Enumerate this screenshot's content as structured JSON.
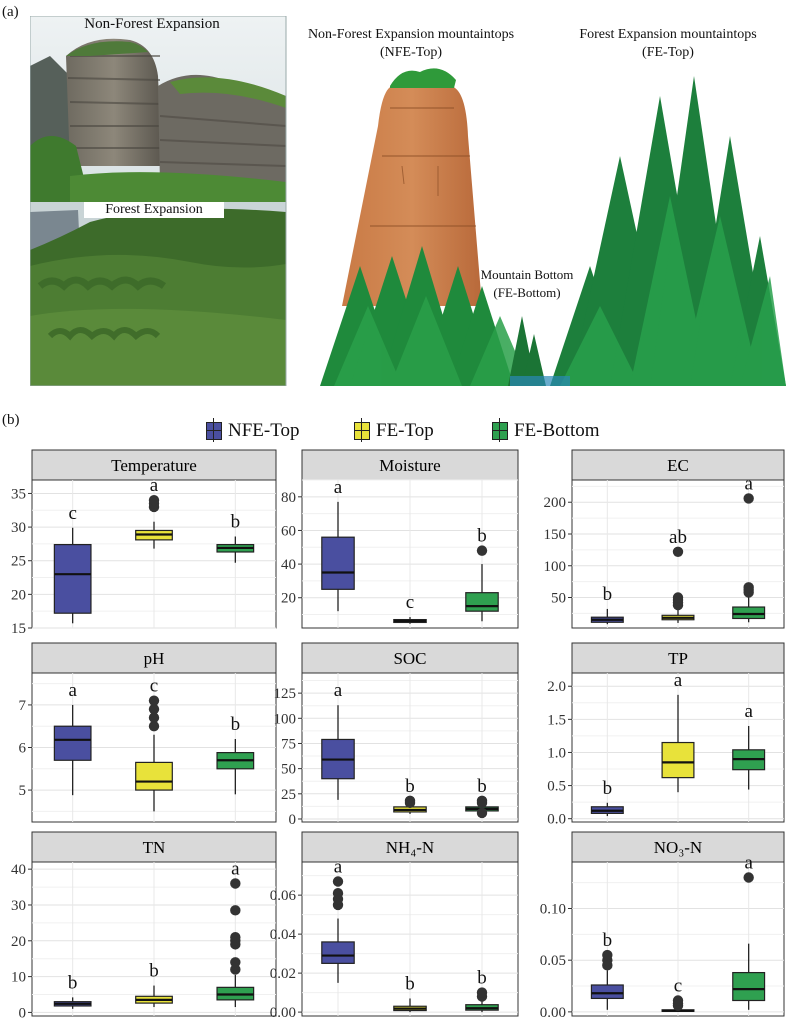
{
  "panel_a": {
    "label": "(a)",
    "photo_top_caption": "Non-Forest Expansion",
    "photo_bottom_caption": "Forest Expansion",
    "nfe_top_line1": "Non-Forest Expansion mountaintops",
    "nfe_top_line2": "(NFE-Top)",
    "fe_top_line1": "Forest Expansion mountaintops",
    "fe_top_line2": "(FE-Top)",
    "fe_bottom_line1": "Mountain Bottom",
    "fe_bottom_line2": "(FE-Bottom)"
  },
  "panel_b": {
    "label": "(b)",
    "legend": [
      {
        "name": "NFE-Top",
        "color": "#4a4fa0"
      },
      {
        "name": "FE-Top",
        "color": "#e8e23a"
      },
      {
        "name": "FE-Bottom",
        "color": "#2fa050"
      }
    ]
  },
  "chart_data": [
    {
      "type": "box",
      "title": "Temperature",
      "categories": [
        "NFE-Top",
        "FE-Top",
        "FE-Bottom"
      ],
      "ylim": [
        15,
        37
      ],
      "yticks": [
        15,
        20,
        25,
        30,
        35
      ],
      "ytick_labels": [
        "15",
        "20",
        "25",
        "30",
        "35"
      ],
      "boxes": [
        {
          "min": 15.7,
          "q1": 17.2,
          "median": 23.0,
          "q3": 27.4,
          "max": 29.9,
          "outliers": [],
          "letter": "c"
        },
        {
          "min": 26.8,
          "q1": 28.1,
          "median": 28.9,
          "q3": 29.5,
          "max": 30.8,
          "outliers": [
            33.0,
            33.5,
            34.0
          ],
          "letter": "a"
        },
        {
          "min": 24.7,
          "q1": 26.3,
          "median": 26.9,
          "q3": 27.4,
          "max": 28.6,
          "outliers": [],
          "letter": "b"
        }
      ]
    },
    {
      "type": "box",
      "title": "Moisture",
      "categories": [
        "NFE-Top",
        "FE-Top",
        "FE-Bottom"
      ],
      "ylim": [
        2,
        90
      ],
      "yticks": [
        20,
        40,
        60,
        80
      ],
      "ytick_labels": [
        "20",
        "40",
        "60",
        "80"
      ],
      "boxes": [
        {
          "min": 12,
          "q1": 25,
          "median": 35,
          "q3": 56,
          "max": 77,
          "outliers": [],
          "letter": "a"
        },
        {
          "min": 4.5,
          "q1": 5.3,
          "median": 6.2,
          "q3": 7.0,
          "max": 8.5,
          "outliers": [],
          "letter": "c"
        },
        {
          "min": 6,
          "q1": 12,
          "median": 15,
          "q3": 23,
          "max": 40,
          "outliers": [
            48
          ],
          "letter": "b"
        }
      ]
    },
    {
      "type": "box",
      "title": "EC",
      "categories": [
        "NFE-Top",
        "FE-Top",
        "FE-Bottom"
      ],
      "ylim": [
        2,
        235
      ],
      "yticks": [
        50,
        100,
        150,
        200
      ],
      "ytick_labels": [
        "50",
        "100",
        "150",
        "200"
      ],
      "boxes": [
        {
          "min": 8,
          "q1": 11,
          "median": 15,
          "q3": 19,
          "max": 32,
          "outliers": [],
          "letter": "b"
        },
        {
          "min": 10,
          "q1": 15,
          "median": 18,
          "q3": 22,
          "max": 33,
          "outliers": [
            38,
            42,
            46,
            50,
            122
          ],
          "letter": "ab"
        },
        {
          "min": 11,
          "q1": 17,
          "median": 24,
          "q3": 35,
          "max": 52,
          "outliers": [
            58,
            62,
            66,
            206
          ],
          "letter": "a"
        }
      ]
    },
    {
      "type": "box",
      "title": "pH",
      "categories": [
        "NFE-Top",
        "FE-Top",
        "FE-Bottom"
      ],
      "ylim": [
        4.25,
        7.75
      ],
      "yticks": [
        5,
        6,
        7
      ],
      "ytick_labels": [
        "5",
        "6",
        "7"
      ],
      "boxes": [
        {
          "min": 4.88,
          "q1": 5.7,
          "median": 6.18,
          "q3": 6.5,
          "max": 7.0,
          "outliers": [],
          "letter": "a"
        },
        {
          "min": 4.5,
          "q1": 5.0,
          "median": 5.2,
          "q3": 5.65,
          "max": 6.3,
          "outliers": [
            6.5,
            6.7,
            6.9,
            7.1
          ],
          "letter": "c"
        },
        {
          "min": 4.9,
          "q1": 5.5,
          "median": 5.7,
          "q3": 5.88,
          "max": 6.2,
          "outliers": [],
          "letter": "b"
        }
      ]
    },
    {
      "type": "box",
      "title": "SOC",
      "categories": [
        "NFE-Top",
        "FE-Top",
        "FE-Bottom"
      ],
      "ylim": [
        -3,
        145
      ],
      "yticks": [
        0,
        25,
        50,
        75,
        100,
        125
      ],
      "ytick_labels": [
        "0",
        "25",
        "50",
        "75",
        "100",
        "125"
      ],
      "boxes": [
        {
          "min": 19,
          "q1": 40,
          "median": 59,
          "q3": 79,
          "max": 113,
          "outliers": [],
          "letter": "a"
        },
        {
          "min": 5,
          "q1": 7,
          "median": 9,
          "q3": 12,
          "max": 14,
          "outliers": [
            16,
            18
          ],
          "letter": "b"
        },
        {
          "min": 5,
          "q1": 8,
          "median": 10,
          "q3": 12,
          "max": 14,
          "outliers": [
            6,
            16,
            18
          ],
          "letter": "b"
        }
      ]
    },
    {
      "type": "box",
      "title": "TP",
      "categories": [
        "NFE-Top",
        "FE-Top",
        "FE-Bottom"
      ],
      "ylim": [
        -0.05,
        2.2
      ],
      "yticks": [
        0.0,
        0.5,
        1.0,
        1.5,
        2.0
      ],
      "ytick_labels": [
        "0.0",
        "0.5",
        "1.0",
        "1.5",
        "2.0"
      ],
      "boxes": [
        {
          "min": 0.04,
          "q1": 0.08,
          "median": 0.12,
          "q3": 0.18,
          "max": 0.24,
          "outliers": [],
          "letter": "b"
        },
        {
          "min": 0.4,
          "q1": 0.62,
          "median": 0.85,
          "q3": 1.15,
          "max": 1.87,
          "outliers": [],
          "letter": "a"
        },
        {
          "min": 0.44,
          "q1": 0.74,
          "median": 0.9,
          "q3": 1.04,
          "max": 1.4,
          "outliers": [],
          "letter": "a"
        }
      ]
    },
    {
      "type": "box",
      "title": "TN",
      "categories": [
        "NFE-Top",
        "FE-Top",
        "FE-Bottom"
      ],
      "ylim": [
        -1,
        42
      ],
      "yticks": [
        0,
        10,
        20,
        30,
        40
      ],
      "ytick_labels": [
        "0",
        "10",
        "20",
        "30",
        "40"
      ],
      "boxes": [
        {
          "min": 1.0,
          "q1": 1.8,
          "median": 2.4,
          "q3": 3.0,
          "max": 4.2,
          "outliers": [],
          "letter": "b"
        },
        {
          "min": 1.5,
          "q1": 2.6,
          "median": 3.5,
          "q3": 4.5,
          "max": 7.5,
          "outliers": [],
          "letter": "b"
        },
        {
          "min": 1.5,
          "q1": 3.5,
          "median": 5.0,
          "q3": 7.0,
          "max": 10.5,
          "outliers": [
            12,
            14,
            19,
            20,
            21,
            28.5,
            36
          ],
          "letter": "a"
        }
      ]
    },
    {
      "type": "box",
      "title": "NH₄-N",
      "categories": [
        "NFE-Top",
        "FE-Top",
        "FE-Bottom"
      ],
      "ylim": [
        -0.002,
        0.077
      ],
      "yticks": [
        0.0,
        0.02,
        0.04,
        0.06
      ],
      "ytick_labels": [
        "0.00",
        "0.02",
        "0.04",
        "0.06"
      ],
      "boxes": [
        {
          "min": 0.015,
          "q1": 0.025,
          "median": 0.029,
          "q3": 0.036,
          "max": 0.048,
          "outliers": [
            0.055,
            0.058,
            0.061,
            0.067
          ],
          "letter": "a"
        },
        {
          "min": 0.0,
          "q1": 0.0008,
          "median": 0.0018,
          "q3": 0.003,
          "max": 0.007,
          "outliers": [],
          "letter": "b"
        },
        {
          "min": 0.0,
          "q1": 0.001,
          "median": 0.002,
          "q3": 0.0038,
          "max": 0.0065,
          "outliers": [
            0.008,
            0.01
          ],
          "letter": "b"
        }
      ]
    },
    {
      "type": "box",
      "title": "NO₃-N",
      "categories": [
        "NFE-Top",
        "FE-Top",
        "FE-Bottom"
      ],
      "ylim": [
        -0.004,
        0.145
      ],
      "yticks": [
        0.0,
        0.05,
        0.1
      ],
      "ytick_labels": [
        "0.00",
        "0.05",
        "0.10"
      ],
      "boxes": [
        {
          "min": 0.002,
          "q1": 0.013,
          "median": 0.018,
          "q3": 0.026,
          "max": 0.04,
          "outliers": [
            0.045,
            0.05,
            0.055
          ],
          "letter": "b"
        },
        {
          "min": 0.0,
          "q1": 0.0005,
          "median": 0.001,
          "q3": 0.002,
          "max": 0.004,
          "outliers": [
            0.006,
            0.008,
            0.011
          ],
          "letter": "c"
        },
        {
          "min": 0.002,
          "q1": 0.011,
          "median": 0.022,
          "q3": 0.038,
          "max": 0.066,
          "outliers": [
            0.13
          ],
          "letter": "a"
        }
      ]
    }
  ]
}
